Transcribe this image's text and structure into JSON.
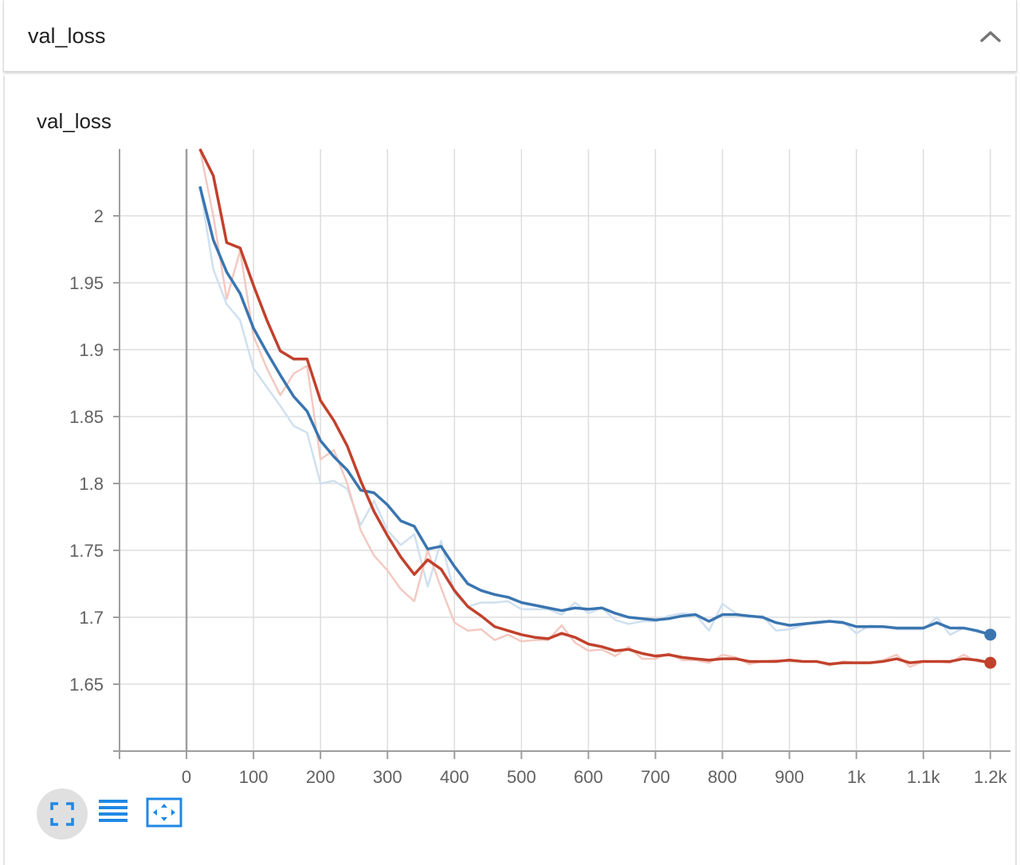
{
  "header": {
    "title": "val_loss",
    "collapse_icon": "chevron-up-icon"
  },
  "toolbar": {
    "fullscreen_icon": "fullscreen-icon",
    "log_scale_icon": "menu-lines-icon",
    "fit_domain_icon": "fit-domain-icon",
    "icon_color": "#1e88e5"
  },
  "chart_data": {
    "type": "line",
    "title": "val_loss",
    "xlabel": "",
    "ylabel": "",
    "xlim": [
      -100,
      1230
    ],
    "ylim": [
      1.6,
      2.05
    ],
    "x_ticks": [
      0,
      100,
      200,
      300,
      400,
      500,
      600,
      700,
      800,
      900,
      1000,
      1100,
      1200
    ],
    "x_tick_labels": [
      "0",
      "100",
      "200",
      "300",
      "400",
      "500",
      "600",
      "700",
      "800",
      "900",
      "1k",
      "1.1k",
      "1.2k"
    ],
    "y_ticks": [
      1.65,
      1.7,
      1.75,
      1.8,
      1.85,
      1.9,
      1.95,
      2
    ],
    "y_tick_labels": [
      "1.65",
      "1.7",
      "1.75",
      "1.8",
      "1.85",
      "1.9",
      "1.95",
      "2"
    ],
    "grid": true,
    "smoothing_display": "smoothed line over faint raw line",
    "series": [
      {
        "color": "#3a75b0",
        "raw_color": "#cfe0ef",
        "x": [
          20,
          40,
          60,
          80,
          100,
          120,
          140,
          160,
          180,
          200,
          220,
          240,
          260,
          280,
          300,
          320,
          340,
          360,
          380,
          400,
          420,
          440,
          460,
          480,
          500,
          520,
          540,
          560,
          580,
          600,
          620,
          640,
          660,
          680,
          700,
          720,
          740,
          760,
          780,
          800,
          820,
          840,
          860,
          880,
          900,
          920,
          940,
          960,
          980,
          1000,
          1020,
          1040,
          1060,
          1080,
          1100,
          1120,
          1140,
          1160,
          1180,
          1200
        ],
        "raw": [
          2.022,
          1.96,
          1.934,
          1.922,
          1.886,
          1.872,
          1.858,
          1.843,
          1.838,
          1.8,
          1.802,
          1.796,
          1.769,
          1.787,
          1.765,
          1.754,
          1.762,
          1.723,
          1.757,
          1.718,
          1.708,
          1.711,
          1.711,
          1.712,
          1.706,
          1.706,
          1.706,
          1.702,
          1.711,
          1.703,
          1.707,
          1.698,
          1.695,
          1.697,
          1.697,
          1.701,
          1.703,
          1.702,
          1.69,
          1.71,
          1.703,
          1.7,
          1.701,
          1.69,
          1.691,
          1.694,
          1.697,
          1.697,
          1.697,
          1.688,
          1.694,
          1.693,
          1.691,
          1.691,
          1.691,
          1.7,
          1.687,
          1.692,
          1.689,
          1.687
        ],
        "smoothed": [
          2.022,
          1.982,
          1.958,
          1.942,
          1.916,
          1.898,
          1.881,
          1.865,
          1.854,
          1.832,
          1.82,
          1.81,
          1.795,
          1.793,
          1.784,
          1.772,
          1.768,
          1.751,
          1.753,
          1.738,
          1.725,
          1.72,
          1.717,
          1.715,
          1.711,
          1.709,
          1.707,
          1.705,
          1.707,
          1.706,
          1.707,
          1.703,
          1.7,
          1.699,
          1.698,
          1.699,
          1.701,
          1.702,
          1.697,
          1.702,
          1.702,
          1.701,
          1.7,
          1.696,
          1.694,
          1.695,
          1.696,
          1.697,
          1.696,
          1.693,
          1.693,
          1.693,
          1.692,
          1.692,
          1.692,
          1.696,
          1.692,
          1.692,
          1.69,
          1.687
        ]
      },
      {
        "color": "#c1412c",
        "raw_color": "#f3c9c1",
        "x": [
          20,
          40,
          60,
          80,
          100,
          120,
          140,
          160,
          180,
          200,
          220,
          240,
          260,
          280,
          300,
          320,
          340,
          360,
          380,
          400,
          420,
          440,
          460,
          480,
          500,
          520,
          540,
          560,
          580,
          600,
          620,
          640,
          660,
          680,
          700,
          720,
          740,
          760,
          780,
          800,
          820,
          840,
          860,
          880,
          900,
          920,
          940,
          960,
          980,
          1000,
          1020,
          1040,
          1060,
          1080,
          1100,
          1120,
          1140,
          1160,
          1180,
          1200
        ],
        "raw": [
          2.05,
          2.0,
          1.938,
          1.974,
          1.91,
          1.886,
          1.866,
          1.882,
          1.888,
          1.818,
          1.825,
          1.8,
          1.765,
          1.746,
          1.735,
          1.721,
          1.712,
          1.75,
          1.722,
          1.696,
          1.69,
          1.691,
          1.683,
          1.687,
          1.682,
          1.683,
          1.683,
          1.694,
          1.681,
          1.675,
          1.676,
          1.671,
          1.678,
          1.669,
          1.669,
          1.673,
          1.668,
          1.668,
          1.666,
          1.672,
          1.67,
          1.665,
          1.667,
          1.668,
          1.667,
          1.667,
          1.667,
          1.664,
          1.667,
          1.666,
          1.666,
          1.668,
          1.672,
          1.663,
          1.667,
          1.667,
          1.666,
          1.672,
          1.667,
          1.666
        ],
        "smoothed": [
          2.05,
          2.03,
          1.98,
          1.976,
          1.948,
          1.922,
          1.899,
          1.893,
          1.893,
          1.862,
          1.847,
          1.828,
          1.802,
          1.779,
          1.761,
          1.745,
          1.732,
          1.743,
          1.736,
          1.72,
          1.708,
          1.701,
          1.693,
          1.69,
          1.687,
          1.685,
          1.684,
          1.688,
          1.685,
          1.68,
          1.678,
          1.675,
          1.676,
          1.673,
          1.671,
          1.672,
          1.67,
          1.669,
          1.668,
          1.669,
          1.669,
          1.667,
          1.667,
          1.667,
          1.668,
          1.667,
          1.667,
          1.665,
          1.666,
          1.666,
          1.666,
          1.667,
          1.669,
          1.666,
          1.667,
          1.667,
          1.667,
          1.669,
          1.668,
          1.666
        ]
      }
    ]
  }
}
